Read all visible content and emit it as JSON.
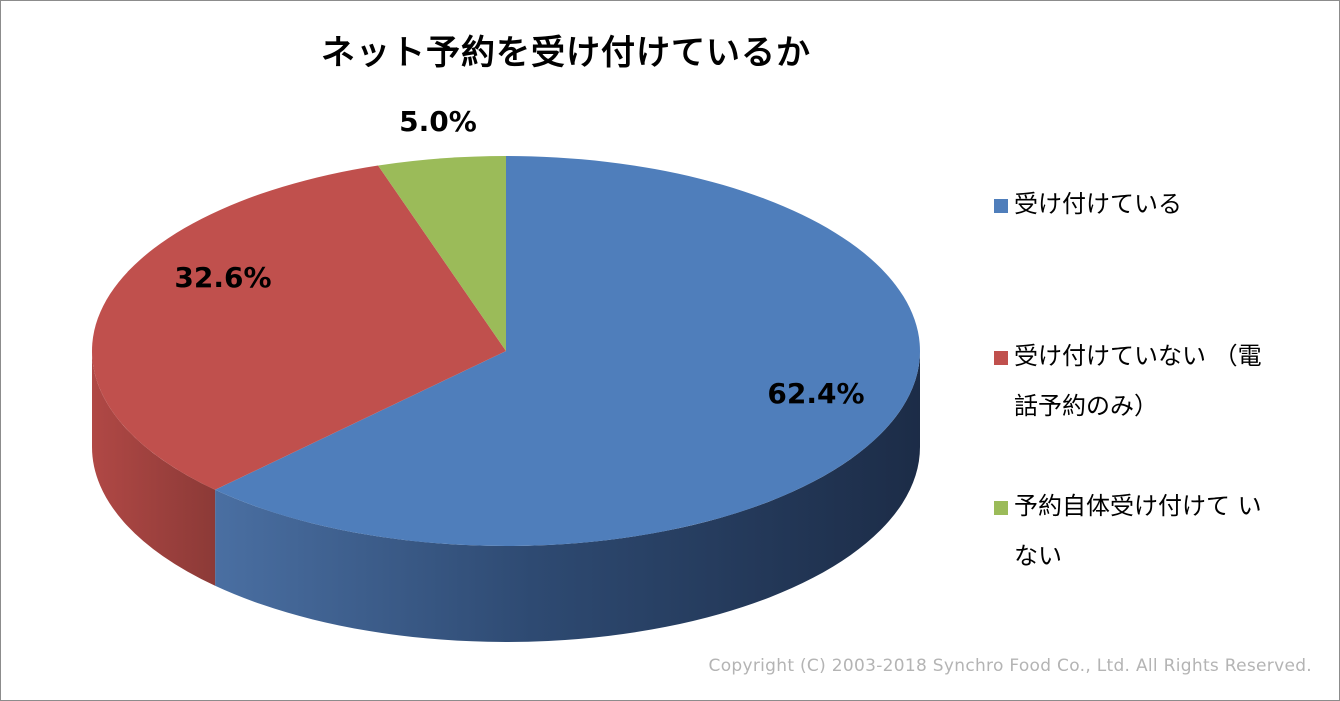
{
  "chart_data": {
    "type": "pie",
    "style": "3d",
    "title": "ネット予約を受け付けているか",
    "legend_position": "right",
    "slices": [
      {
        "label": "受け付けている",
        "value": 62.4,
        "value_label": "62.4%",
        "color": "#4F7EBB"
      },
      {
        "label": "受け付けていない（電話予約のみ）",
        "value": 32.6,
        "value_label": "32.6%",
        "color": "#C0504D"
      },
      {
        "label": "予約自体受け付けていない",
        "value": 5.0,
        "value_label": "5.0%",
        "color": "#9BBB59"
      }
    ]
  },
  "legend": {
    "items": [
      {
        "label": "受け付けている"
      },
      {
        "label": "受け付けていない （電話予約のみ）"
      },
      {
        "label": "予約自体受け付けて いない"
      }
    ]
  },
  "copyright": "Copyright (C) 2003-2018  Synchro Food Co., Ltd. All Rights Reserved."
}
